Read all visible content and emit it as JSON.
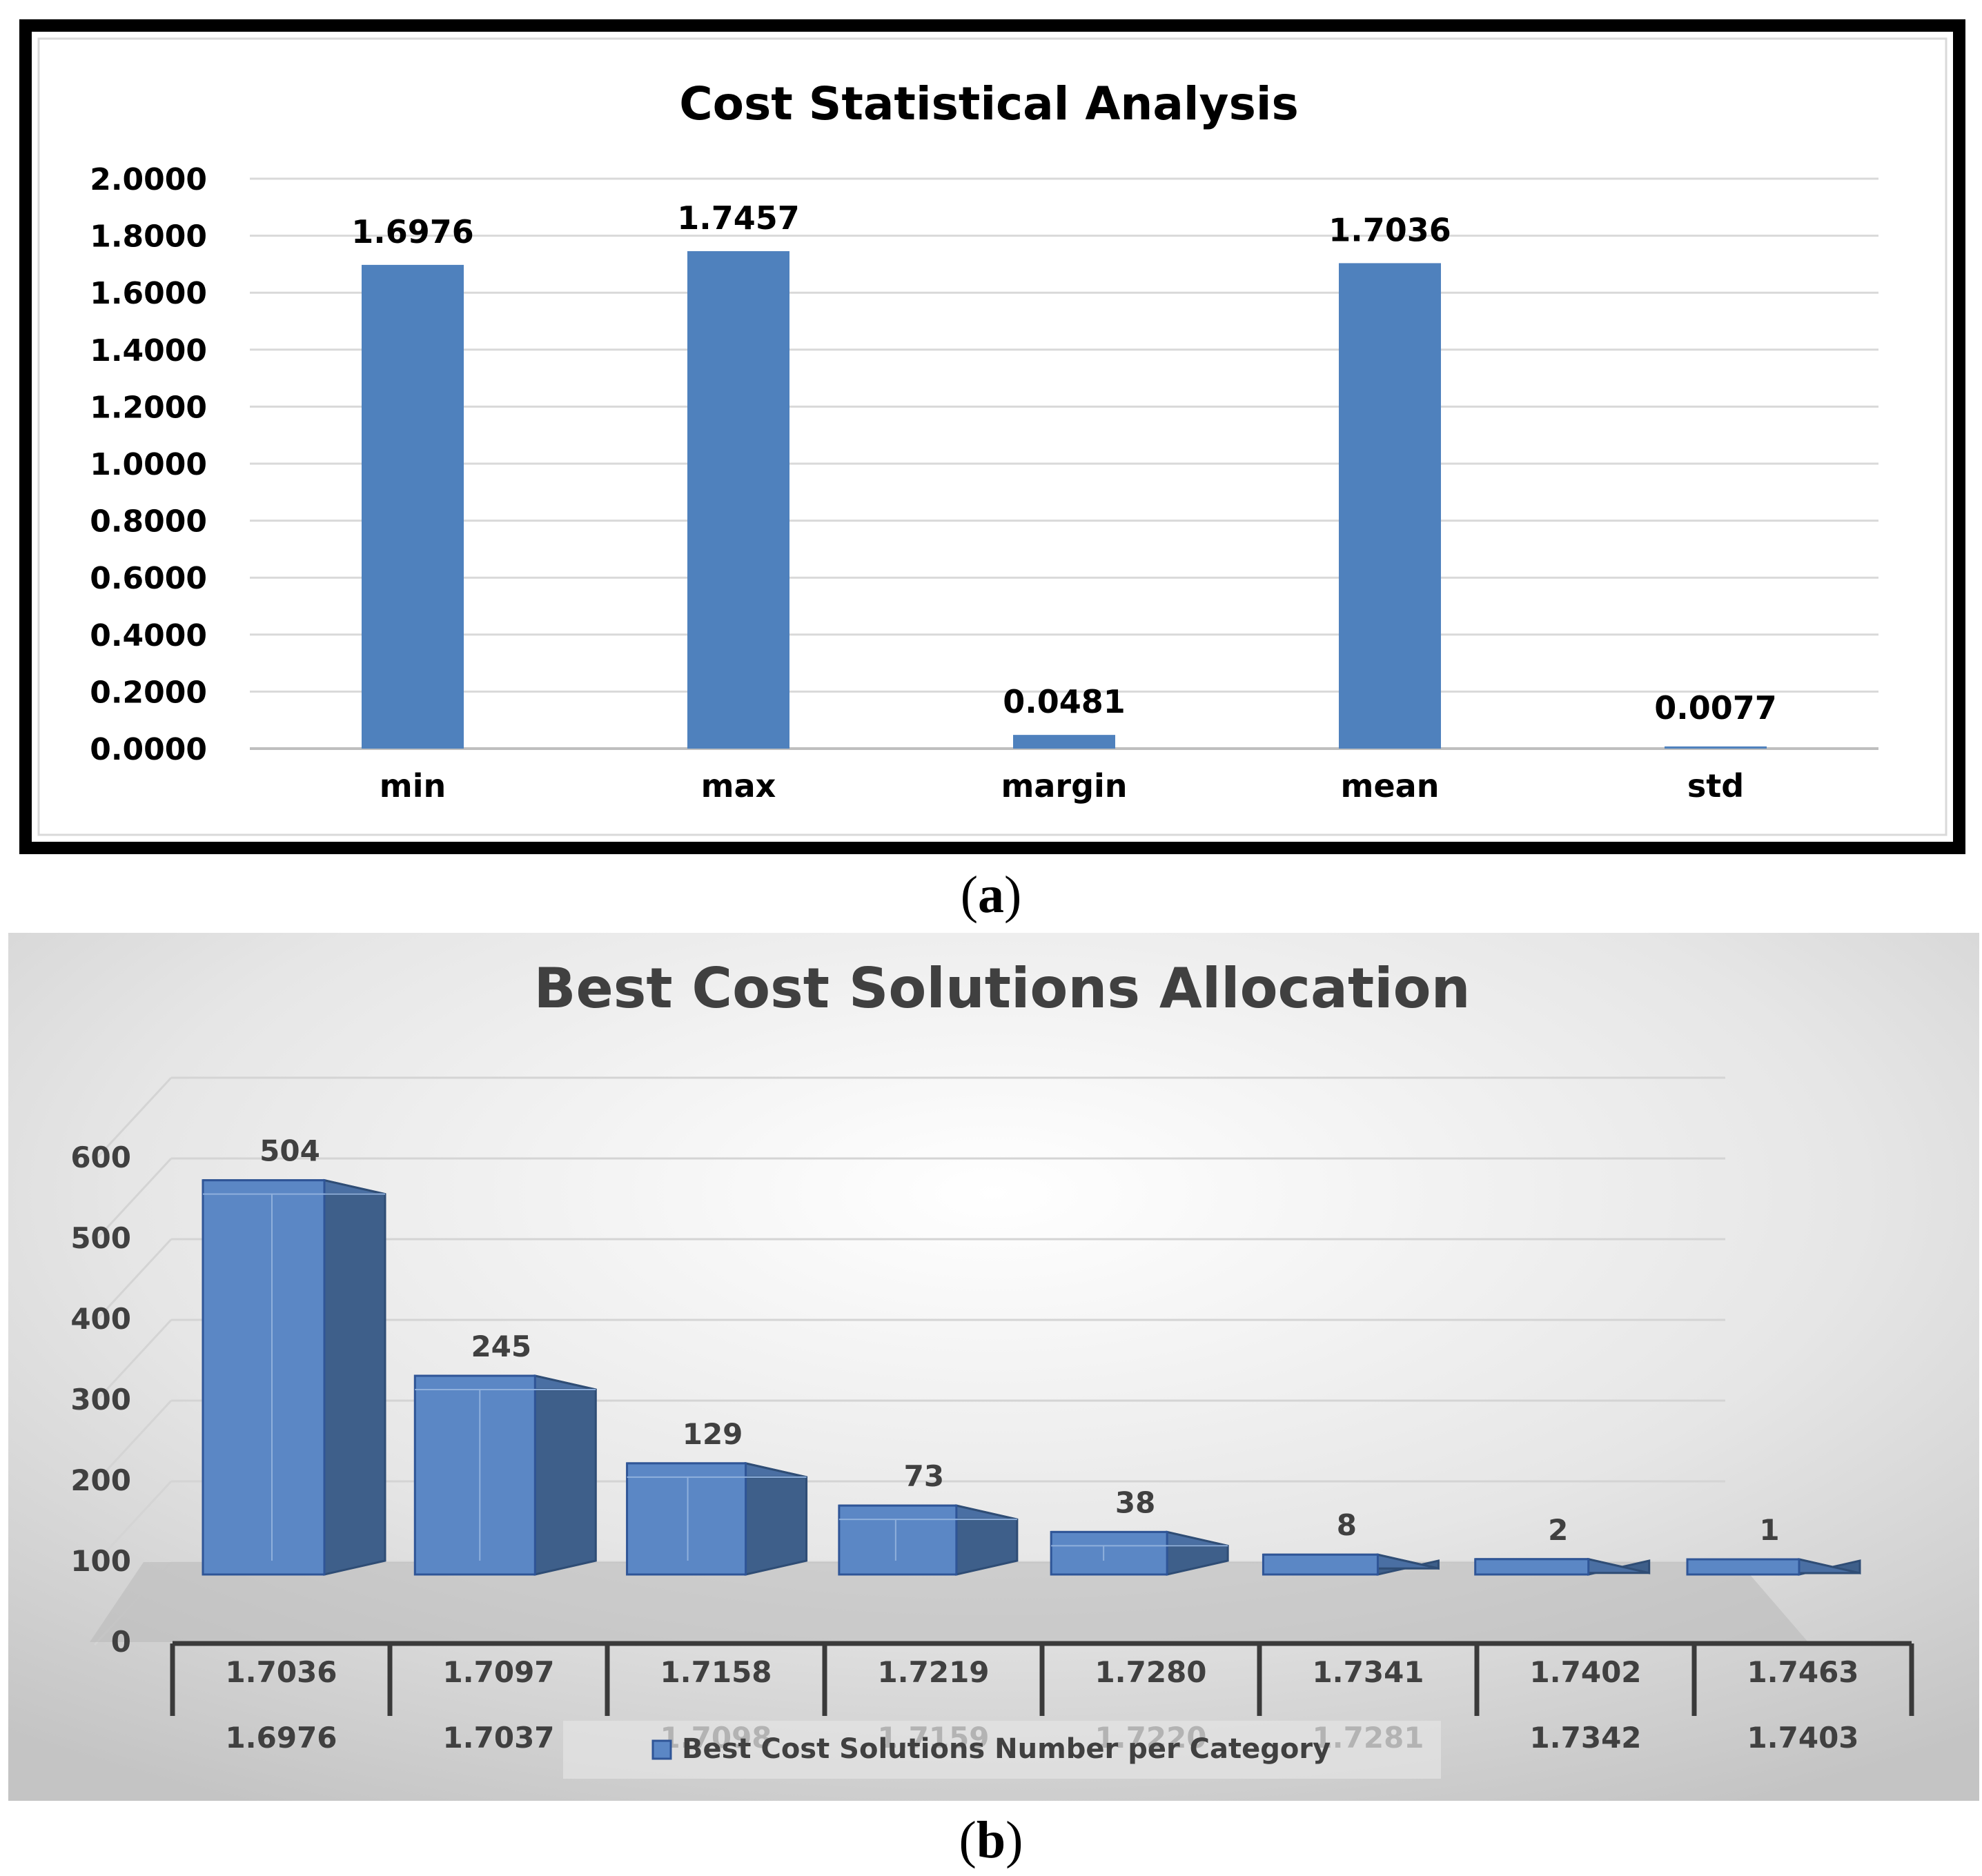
{
  "chart_data": [
    {
      "type": "bar",
      "panel_label": "a",
      "title": "Cost Statistical Analysis",
      "categories": [
        "min",
        "max",
        "margin",
        "mean",
        "std"
      ],
      "values": [
        1.6976,
        1.7457,
        0.0481,
        1.7036,
        0.0077
      ],
      "value_labels": [
        "1.6976",
        "1.7457",
        "0.0481",
        "1.7036",
        "0.0077"
      ],
      "ylim": [
        0,
        2
      ],
      "yticks": [
        "0.0000",
        "0.2000",
        "0.4000",
        "0.6000",
        "0.8000",
        "1.0000",
        "1.2000",
        "1.4000",
        "1.6000",
        "1.8000",
        "2.0000"
      ],
      "xlabel": "",
      "ylabel": "",
      "grid": true,
      "bar_color": "#4f81bd"
    },
    {
      "type": "bar",
      "style": "3d",
      "panel_label": "b",
      "title": "Best Cost Solutions Allocation",
      "categories": [
        {
          "upper": "1.7036",
          "lower": "1.6976"
        },
        {
          "upper": "1.7097",
          "lower": "1.7037"
        },
        {
          "upper": "1.7158",
          "lower": "1.7098"
        },
        {
          "upper": "1.7219",
          "lower": "1.7159"
        },
        {
          "upper": "1.7280",
          "lower": "1.7220"
        },
        {
          "upper": "1.7341",
          "lower": "1.7281"
        },
        {
          "upper": "1.7402",
          "lower": "1.7342"
        },
        {
          "upper": "1.7463",
          "lower": "1.7403"
        }
      ],
      "series": [
        {
          "name": "Best Cost Solutions Number per Category",
          "values": [
            504,
            245,
            129,
            73,
            38,
            8,
            2,
            1
          ]
        }
      ],
      "ylim": [
        0,
        600
      ],
      "yticks": [
        "0",
        "100",
        "200",
        "300",
        "400",
        "500",
        "600"
      ],
      "legend": "bottom",
      "grid": true,
      "bar_color": "#5b87c5"
    }
  ],
  "captions": {
    "a": "a",
    "b": "b"
  }
}
